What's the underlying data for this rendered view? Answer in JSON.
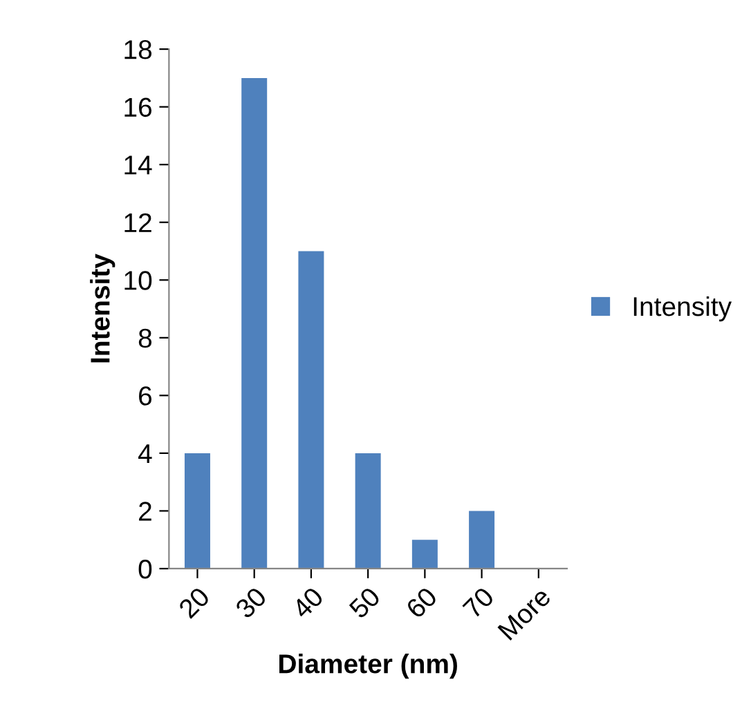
{
  "chart_data": {
    "type": "bar",
    "xlabel": "Diameter (nm)",
    "ylabel": "Intensity",
    "categories": [
      "20",
      "30",
      "40",
      "50",
      "60",
      "70",
      "More"
    ],
    "series": [
      {
        "name": "Intensity",
        "color": "#4f81bd",
        "values": [
          4,
          17,
          11,
          4,
          1,
          2,
          0
        ]
      }
    ],
    "ylim": [
      0,
      18
    ],
    "yticks": [
      0,
      2,
      4,
      6,
      8,
      10,
      12,
      14,
      16,
      18
    ],
    "grid": false,
    "legend": "right"
  }
}
